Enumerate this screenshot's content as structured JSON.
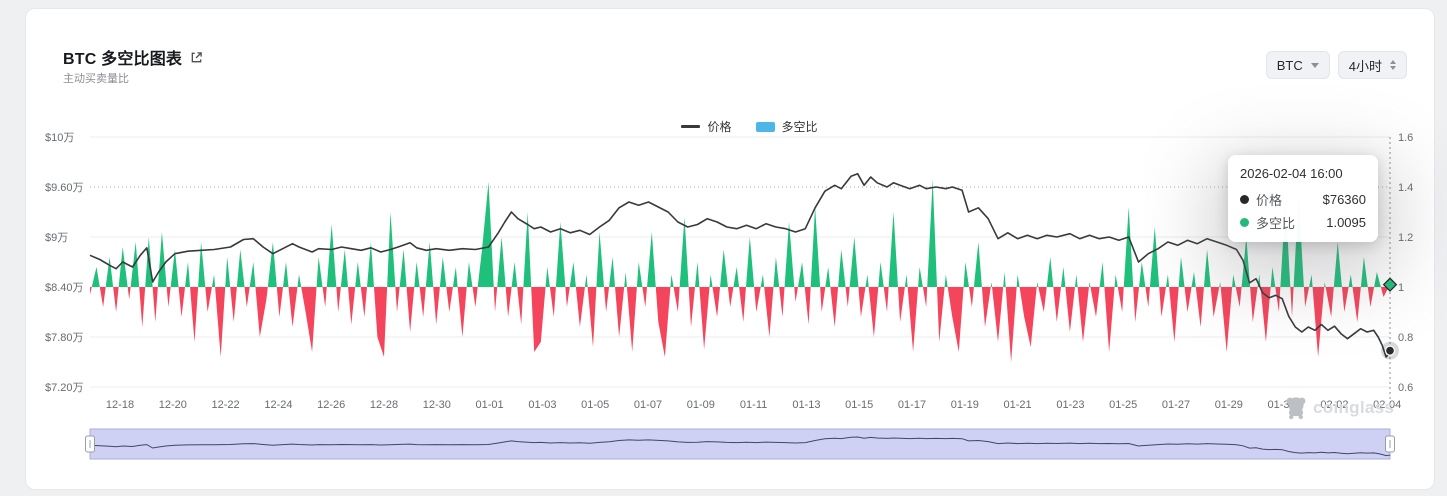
{
  "header": {
    "title": "BTC 多空比图表",
    "subtitle": "主动买卖量比"
  },
  "controls": {
    "symbol_select": {
      "value": "BTC",
      "icon": "caret-down"
    },
    "interval_select": {
      "value": "4小时",
      "icon": "caret-updown"
    }
  },
  "legend": {
    "items": [
      {
        "label": "价格",
        "marker": "line",
        "color": "#37393d"
      },
      {
        "label": "多空比",
        "marker": "bar",
        "color": "#4db5e8"
      }
    ]
  },
  "tooltip": {
    "title": "2026-02-04 16:00",
    "rows": [
      {
        "label": "价格",
        "value": "$76360",
        "dot_color": "#26282b"
      },
      {
        "label": "多空比",
        "value": "1.0095",
        "dot_color": "#23b87c"
      }
    ]
  },
  "watermark": {
    "text": "coinglass"
  },
  "navigator": {
    "fill": "#ced1f3",
    "border": "#a9aede",
    "line_color": "#434660"
  },
  "chart_data": {
    "type": "line+bar",
    "title": "BTC 多空比图表 (价格 vs 多空比)",
    "grid": "horizontal",
    "legend_position": "top-center",
    "x_axis": {
      "tick_labels": [
        "12-18",
        "12-20",
        "12-22",
        "12-24",
        "12-26",
        "12-28",
        "12-30",
        "01-01",
        "01-03",
        "01-05",
        "01-07",
        "01-09",
        "01-11",
        "01-13",
        "01-15",
        "01-17",
        "01-19",
        "01-21",
        "01-23",
        "01-25",
        "01-27",
        "01-29",
        "01-31",
        "02-02",
        "02-04"
      ]
    },
    "left_axis": {
      "tick_labels": [
        "$10万",
        "$9.60万",
        "$9万",
        "$8.40万",
        "$7.80万",
        "$7.20万"
      ],
      "top_value_wan": 10.2,
      "bottom_value_wan": 7.2,
      "unit": "万美元"
    },
    "right_axis": {
      "tick_labels": [
        "1.6",
        "1.4",
        "1.2",
        "1",
        "0.8",
        "0.6"
      ],
      "top": 1.6,
      "bottom": 0.6,
      "baseline": 1
    },
    "dotted_gridline_row": 1,
    "series": [
      {
        "name": "价格",
        "type": "line",
        "color": "#37393d",
        "unit": "万",
        "points": [
          [
            0,
            8.78
          ],
          [
            1.5,
            8.73
          ],
          [
            3,
            8.66
          ],
          [
            4,
            8.62
          ],
          [
            5,
            8.7
          ],
          [
            6.5,
            8.64
          ],
          [
            7.7,
            8.78
          ],
          [
            8.7,
            8.87
          ],
          [
            9.6,
            8.46
          ],
          [
            10.5,
            8.58
          ],
          [
            11.6,
            8.7
          ],
          [
            13,
            8.8
          ],
          [
            15,
            8.83
          ],
          [
            17,
            8.84
          ],
          [
            19,
            8.85
          ],
          [
            21.5,
            8.88
          ],
          [
            23.5,
            8.97
          ],
          [
            25,
            8.98
          ],
          [
            26.5,
            8.88
          ],
          [
            28,
            8.8
          ],
          [
            29.5,
            8.86
          ],
          [
            31,
            8.92
          ],
          [
            32,
            8.88
          ],
          [
            34,
            8.82
          ],
          [
            35,
            8.86
          ],
          [
            37,
            8.85
          ],
          [
            38.5,
            8.88
          ],
          [
            40,
            8.86
          ],
          [
            41.5,
            8.84
          ],
          [
            43,
            8.87
          ],
          [
            44.5,
            8.82
          ],
          [
            46,
            8.85
          ],
          [
            47.5,
            8.89
          ],
          [
            49,
            8.93
          ],
          [
            50,
            8.87
          ],
          [
            51.5,
            8.84
          ],
          [
            53,
            8.86
          ],
          [
            55,
            8.84
          ],
          [
            57,
            8.86
          ],
          [
            59,
            8.85
          ],
          [
            61,
            8.88
          ],
          [
            62.5,
            9.05
          ],
          [
            63.5,
            9.18
          ],
          [
            64.5,
            9.3
          ],
          [
            65.5,
            9.22
          ],
          [
            67,
            9.15
          ],
          [
            68,
            9.1
          ],
          [
            69,
            9.12
          ],
          [
            70.5,
            9.06
          ],
          [
            72,
            9.1
          ],
          [
            73.5,
            9.05
          ],
          [
            75,
            9.08
          ],
          [
            76.5,
            9.03
          ],
          [
            78,
            9.12
          ],
          [
            79.5,
            9.2
          ],
          [
            81,
            9.35
          ],
          [
            82.5,
            9.42
          ],
          [
            84,
            9.38
          ],
          [
            85.5,
            9.42
          ],
          [
            87,
            9.36
          ],
          [
            88.5,
            9.3
          ],
          [
            90,
            9.18
          ],
          [
            91.5,
            9.12
          ],
          [
            93,
            9.15
          ],
          [
            94.5,
            9.22
          ],
          [
            96,
            9.18
          ],
          [
            97.5,
            9.12
          ],
          [
            99,
            9.1
          ],
          [
            100.5,
            9.14
          ],
          [
            102,
            9.1
          ],
          [
            103.5,
            9.16
          ],
          [
            105,
            9.12
          ],
          [
            106.5,
            9.1
          ],
          [
            108,
            9.06
          ],
          [
            109.5,
            9.1
          ],
          [
            111,
            9.35
          ],
          [
            112.5,
            9.55
          ],
          [
            114,
            9.62
          ],
          [
            115,
            9.58
          ],
          [
            116.5,
            9.73
          ],
          [
            117.5,
            9.76
          ],
          [
            118.5,
            9.62
          ],
          [
            119.5,
            9.72
          ],
          [
            120.5,
            9.65
          ],
          [
            122,
            9.6
          ],
          [
            123,
            9.65
          ],
          [
            124,
            9.62
          ],
          [
            125.5,
            9.58
          ],
          [
            127,
            9.62
          ],
          [
            128,
            9.58
          ],
          [
            129.5,
            9.6
          ],
          [
            131,
            9.58
          ],
          [
            132,
            9.6
          ],
          [
            133.5,
            9.56
          ],
          [
            134.5,
            9.3
          ],
          [
            136,
            9.35
          ],
          [
            137.5,
            9.22
          ],
          [
            139,
            8.98
          ],
          [
            140.5,
            9.05
          ],
          [
            142,
            8.98
          ],
          [
            143.5,
            9.02
          ],
          [
            145,
            8.98
          ],
          [
            146.5,
            9.02
          ],
          [
            148,
            9
          ],
          [
            150,
            9.04
          ],
          [
            151.5,
            8.98
          ],
          [
            153,
            9.02
          ],
          [
            154.5,
            8.98
          ],
          [
            156,
            9
          ],
          [
            157.5,
            8.96
          ],
          [
            159,
            9
          ],
          [
            160.5,
            8.7
          ],
          [
            162,
            8.8
          ],
          [
            163.5,
            8.86
          ],
          [
            165,
            8.94
          ],
          [
            166.5,
            8.9
          ],
          [
            168,
            8.96
          ],
          [
            169.5,
            8.92
          ],
          [
            171,
            8.98
          ],
          [
            172.5,
            8.94
          ],
          [
            174,
            8.9
          ],
          [
            175.5,
            8.85
          ],
          [
            176.5,
            8.72
          ],
          [
            177.5,
            8.45
          ],
          [
            178.5,
            8.5
          ],
          [
            179.5,
            8.33
          ],
          [
            180.5,
            8.27
          ],
          [
            181.5,
            8.3
          ],
          [
            182.5,
            8.26
          ],
          [
            183.5,
            8.05
          ],
          [
            184.5,
            7.92
          ],
          [
            185.5,
            7.86
          ],
          [
            186.5,
            7.92
          ],
          [
            187.5,
            7.88
          ],
          [
            188.5,
            7.95
          ],
          [
            189.5,
            7.88
          ],
          [
            190.5,
            7.93
          ],
          [
            191.5,
            7.84
          ],
          [
            192.5,
            7.78
          ],
          [
            193.5,
            7.84
          ],
          [
            194.5,
            7.9
          ],
          [
            195.5,
            7.86
          ],
          [
            196.5,
            7.88
          ],
          [
            197.2,
            7.8
          ],
          [
            197.8,
            7.7
          ],
          [
            198.4,
            7.56
          ],
          [
            199,
            7.62
          ],
          [
            199.6,
            7.636
          ]
        ]
      },
      {
        "name": "多空比",
        "type": "spike-bar",
        "up_color": "#1fc07c",
        "down_color": "#f5455c",
        "baseline": 1,
        "values": [
          0.97,
          1.08,
          0.92,
          1.12,
          0.9,
          1.16,
          0.95,
          1.18,
          0.84,
          1.2,
          0.86,
          1.22,
          0.92,
          1.15,
          0.88,
          1.1,
          0.78,
          1.18,
          0.9,
          1.05,
          0.72,
          1.12,
          0.86,
          1.15,
          0.92,
          1.1,
          0.8,
          0.95,
          1.18,
          0.88,
          1.1,
          0.84,
          1.05,
          0.9,
          0.74,
          1.12,
          0.92,
          1.25,
          0.9,
          1.15,
          0.85,
          1.1,
          0.88,
          1.18,
          0.8,
          0.72,
          1.3,
          0.9,
          1.15,
          0.82,
          1.1,
          0.88,
          1.18,
          0.85,
          1.12,
          0.9,
          1.08,
          0.8,
          1.1,
          0.92,
          1.15,
          1.42,
          0.9,
          1.2,
          0.88,
          1.1,
          0.85,
          1.3,
          0.74,
          0.78,
          1.08,
          0.88,
          1.26,
          0.92,
          1.1,
          0.84,
          1.05,
          0.76,
          1.22,
          0.9,
          1.12,
          0.8,
          1.06,
          0.74,
          1.1,
          0.92,
          1.22,
          0.86,
          0.72,
          1.05,
          0.9,
          1.28,
          0.84,
          1.1,
          0.75,
          1.05,
          0.88,
          1.15,
          0.92,
          1.08,
          0.86,
          1.2,
          0.9,
          1.05,
          0.8,
          1.12,
          0.88,
          1.26,
          0.94,
          1.1,
          0.85,
          1.32,
          0.9,
          1.08,
          0.84,
          1.15,
          0.92,
          1.2,
          0.88,
          1.05,
          0.8,
          1.1,
          0.9,
          1.3,
          0.86,
          1.05,
          0.74,
          1.08,
          0.92,
          1.43,
          0.78,
          1.05,
          0.88,
          0.74,
          1.1,
          0.92,
          1.18,
          0.84,
          1.02,
          0.78,
          1.06,
          0.7,
          1.05,
          0.88,
          0.76,
          1.02,
          0.9,
          1.12,
          0.86,
          1.08,
          0.82,
          1.05,
          0.78,
          1.02,
          0.88,
          1.1,
          0.74,
          1.05,
          0.9,
          1.32,
          0.86,
          1.1,
          0.92,
          1.24,
          0.88,
          1.05,
          0.78,
          1.12,
          0.9,
          1.06,
          0.84,
          1.15,
          0.88,
          1.02,
          0.74,
          1.05,
          0.92,
          1.2,
          0.86,
          1.05,
          0.78,
          1.08,
          0.9,
          1.35,
          0.88,
          1.37,
          0.92,
          1.05,
          0.72,
          1.02,
          0.88,
          1.18,
          0.9,
          1.05,
          0.86,
          1.12,
          0.92,
          1.06,
          0.96,
          1.0095
        ]
      }
    ],
    "crosshair": {
      "time": "2026-02-04 16:00",
      "price_wan": 7.636,
      "ratio": 1.0095
    }
  }
}
